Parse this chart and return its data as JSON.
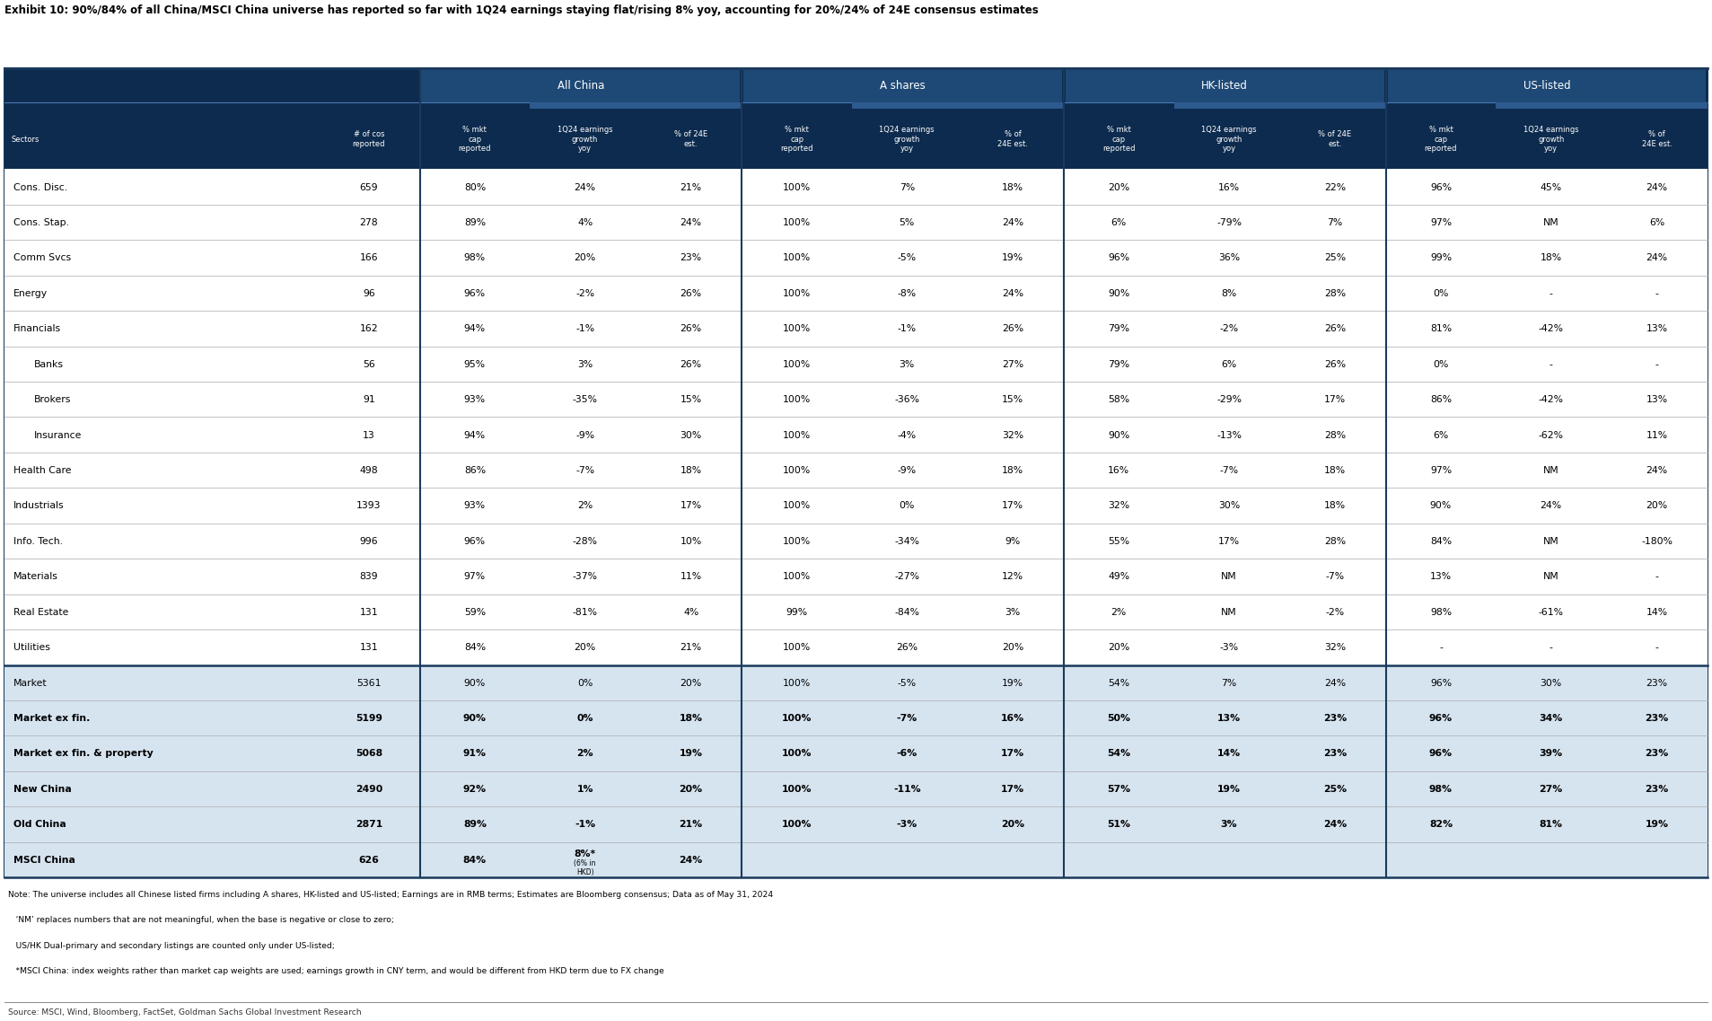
{
  "title": "Exhibit 10: 90%/84% of all China/MSCI China universe has reported so far with 1Q24 earnings staying flat/rising 8% yoy, accounting for 20%/24% of 24E consensus estimates",
  "header_bg": "#0d2b4e",
  "header_text": "#ffffff",
  "row_bg_white": "#ffffff",
  "row_bg_light_blue": "#d6e4f0",
  "border_dark": "#1a3a5c",
  "border_light": "#aaaaaa",
  "rows": [
    {
      "sector": "Cons. Disc.",
      "indent": 0,
      "bg": "white",
      "bold": false,
      "data": [
        "659",
        "80%",
        "24%",
        "21%",
        "100%",
        "7%",
        "18%",
        "20%",
        "16%",
        "22%",
        "96%",
        "45%",
        "24%"
      ]
    },
    {
      "sector": "Cons. Stap.",
      "indent": 0,
      "bg": "white",
      "bold": false,
      "data": [
        "278",
        "89%",
        "4%",
        "24%",
        "100%",
        "5%",
        "24%",
        "6%",
        "-79%",
        "7%",
        "97%",
        "NM",
        "6%"
      ]
    },
    {
      "sector": "Comm Svcs",
      "indent": 0,
      "bg": "white",
      "bold": false,
      "data": [
        "166",
        "98%",
        "20%",
        "23%",
        "100%",
        "-5%",
        "19%",
        "96%",
        "36%",
        "25%",
        "99%",
        "18%",
        "24%"
      ]
    },
    {
      "sector": "Energy",
      "indent": 0,
      "bg": "white",
      "bold": false,
      "data": [
        "96",
        "96%",
        "-2%",
        "26%",
        "100%",
        "-8%",
        "24%",
        "90%",
        "8%",
        "28%",
        "0%",
        "-",
        "-"
      ]
    },
    {
      "sector": "Financials",
      "indent": 0,
      "bg": "white",
      "bold": false,
      "data": [
        "162",
        "94%",
        "-1%",
        "26%",
        "100%",
        "-1%",
        "26%",
        "79%",
        "-2%",
        "26%",
        "81%",
        "-42%",
        "13%"
      ]
    },
    {
      "sector": "Banks",
      "indent": 1,
      "bg": "white",
      "bold": false,
      "data": [
        "56",
        "95%",
        "3%",
        "26%",
        "100%",
        "3%",
        "27%",
        "79%",
        "6%",
        "26%",
        "0%",
        "-",
        "-"
      ]
    },
    {
      "sector": "Brokers",
      "indent": 1,
      "bg": "white",
      "bold": false,
      "data": [
        "91",
        "93%",
        "-35%",
        "15%",
        "100%",
        "-36%",
        "15%",
        "58%",
        "-29%",
        "17%",
        "86%",
        "-42%",
        "13%"
      ]
    },
    {
      "sector": "Insurance",
      "indent": 1,
      "bg": "white",
      "bold": false,
      "data": [
        "13",
        "94%",
        "-9%",
        "30%",
        "100%",
        "-4%",
        "32%",
        "90%",
        "-13%",
        "28%",
        "6%",
        "-62%",
        "11%"
      ]
    },
    {
      "sector": "Health Care",
      "indent": 0,
      "bg": "white",
      "bold": false,
      "data": [
        "498",
        "86%",
        "-7%",
        "18%",
        "100%",
        "-9%",
        "18%",
        "16%",
        "-7%",
        "18%",
        "97%",
        "NM",
        "24%"
      ]
    },
    {
      "sector": "Industrials",
      "indent": 0,
      "bg": "white",
      "bold": false,
      "data": [
        "1393",
        "93%",
        "2%",
        "17%",
        "100%",
        "0%",
        "17%",
        "32%",
        "30%",
        "18%",
        "90%",
        "24%",
        "20%"
      ]
    },
    {
      "sector": "Info. Tech.",
      "indent": 0,
      "bg": "white",
      "bold": false,
      "data": [
        "996",
        "96%",
        "-28%",
        "10%",
        "100%",
        "-34%",
        "9%",
        "55%",
        "17%",
        "28%",
        "84%",
        "NM",
        "-180%"
      ]
    },
    {
      "sector": "Materials",
      "indent": 0,
      "bg": "white",
      "bold": false,
      "data": [
        "839",
        "97%",
        "-37%",
        "11%",
        "100%",
        "-27%",
        "12%",
        "49%",
        "NM",
        "-7%",
        "13%",
        "NM",
        "-"
      ]
    },
    {
      "sector": "Real Estate",
      "indent": 0,
      "bg": "white",
      "bold": false,
      "data": [
        "131",
        "59%",
        "-81%",
        "4%",
        "99%",
        "-84%",
        "3%",
        "2%",
        "NM",
        "-2%",
        "98%",
        "-61%",
        "14%"
      ]
    },
    {
      "sector": "Utilities",
      "indent": 0,
      "bg": "white",
      "bold": false,
      "data": [
        "131",
        "84%",
        "20%",
        "21%",
        "100%",
        "26%",
        "20%",
        "20%",
        "-3%",
        "32%",
        "-",
        "-",
        "-"
      ]
    },
    {
      "sector": "Market",
      "indent": 0,
      "bg": "light_blue",
      "bold": false,
      "data": [
        "5361",
        "90%",
        "0%",
        "20%",
        "100%",
        "-5%",
        "19%",
        "54%",
        "7%",
        "24%",
        "96%",
        "30%",
        "23%"
      ]
    },
    {
      "sector": "Market ex fin.",
      "indent": 0,
      "bg": "light_blue",
      "bold": true,
      "data": [
        "5199",
        "90%",
        "0%",
        "18%",
        "100%",
        "-7%",
        "16%",
        "50%",
        "13%",
        "23%",
        "96%",
        "34%",
        "23%"
      ]
    },
    {
      "sector": "Market ex fin. & property",
      "indent": 0,
      "bg": "light_blue",
      "bold": true,
      "data": [
        "5068",
        "91%",
        "2%",
        "19%",
        "100%",
        "-6%",
        "17%",
        "54%",
        "14%",
        "23%",
        "96%",
        "39%",
        "23%"
      ]
    },
    {
      "sector": "New China",
      "indent": 0,
      "bg": "light_blue",
      "bold": true,
      "data": [
        "2490",
        "92%",
        "1%",
        "20%",
        "100%",
        "-11%",
        "17%",
        "57%",
        "19%",
        "25%",
        "98%",
        "27%",
        "23%"
      ]
    },
    {
      "sector": "Old China",
      "indent": 0,
      "bg": "light_blue",
      "bold": true,
      "data": [
        "2871",
        "89%",
        "-1%",
        "21%",
        "100%",
        "-3%",
        "20%",
        "51%",
        "3%",
        "24%",
        "82%",
        "81%",
        "19%"
      ]
    },
    {
      "sector": "MSCI China",
      "indent": 0,
      "bg": "light_blue",
      "bold": true,
      "data": [
        "626",
        "84%",
        "8%",
        "24%",
        "",
        "",
        "",
        "",
        "",
        "",
        "",
        "",
        ""
      ]
    }
  ],
  "notes": [
    "Note: The universe includes all Chinese listed firms including A shares, HK-listed and US-listed; Earnings are in RMB terms; Estimates are Bloomberg consensus; Data as of May 31, 2024",
    "   ‘NM’ replaces numbers that are not meaningful, when the base is negative or close to zero;",
    "   US/HK Dual-primary and secondary listings are counted only under US-listed;",
    "   *MSCI China: index weights rather than market cap weights are used; earnings growth in CNY term, and would be different from HKD term due to FX change"
  ],
  "source": "Source: MSCI, Wind, Bloomberg, FactSet, Goldman Sachs Global Investment Research"
}
